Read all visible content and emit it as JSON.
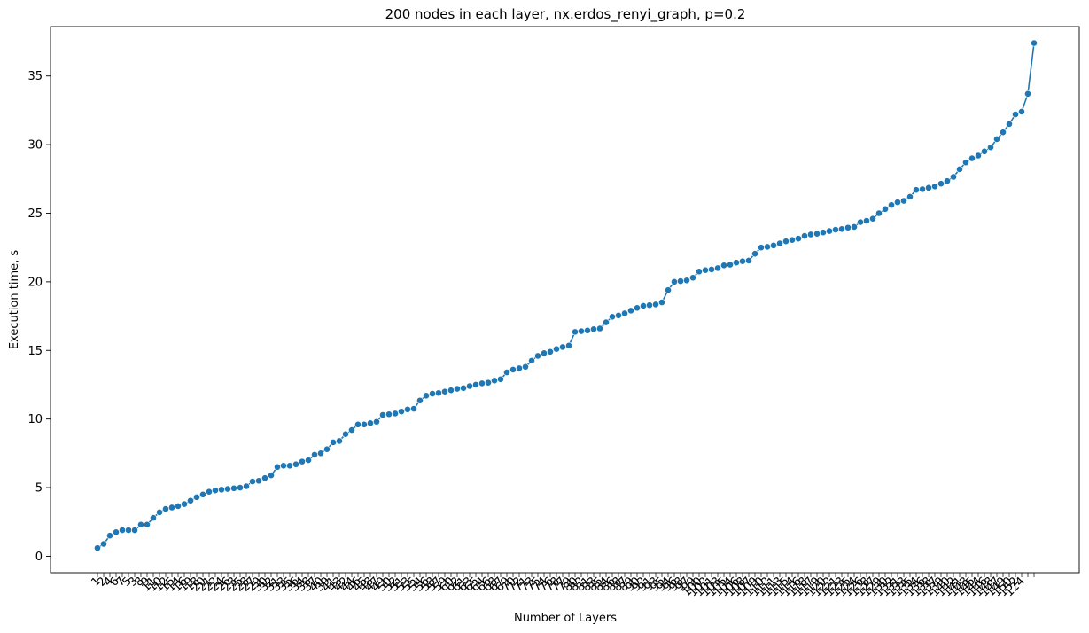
{
  "chart_data": {
    "type": "line",
    "title": "200 nodes in each layer, nx.erdos_renyi_graph, p=0.2",
    "xlabel": "Number of Layers",
    "ylabel": "Execution time, s",
    "ylim": [
      -1.2,
      38.6
    ],
    "yticks": [
      0,
      5,
      10,
      15,
      20,
      25,
      30,
      35
    ],
    "grid": false,
    "series_color": "#1f77b4",
    "x_tick_labels_note_text": "",
    "x_categories_count": 150,
    "x_tick_labels_visible": [
      "1",
      "2",
      "4",
      "6",
      "7",
      "5",
      "3",
      "8",
      "9",
      "11",
      "10",
      "12",
      "15",
      "14",
      "16",
      "19",
      "18",
      "20",
      "21",
      "22",
      "24",
      "26",
      "23",
      "25",
      "28",
      "27",
      "29",
      "30",
      "32",
      "31",
      "33",
      "35",
      "36",
      "34",
      "38",
      "37",
      "40",
      "39",
      "41",
      "43",
      "42",
      "44",
      "46",
      "45",
      "48",
      "47",
      "49",
      "50",
      "52",
      "51",
      "53",
      "55",
      "54",
      "56",
      "58",
      "57",
      "59",
      "60",
      "62",
      "61",
      "63",
      "65",
      "64",
      "66",
      "68",
      "67",
      "69",
      "70",
      "72",
      "71",
      "73",
      "75",
      "74",
      "76",
      "78",
      "77",
      "79",
      "80",
      "82",
      "81",
      "83",
      "85",
      "84",
      "86",
      "88",
      "87",
      "89",
      "90",
      "92",
      "91",
      "93",
      "95",
      "94",
      "96",
      "98",
      "97",
      "99",
      "100",
      "102",
      "101",
      "103",
      "105",
      "104",
      "106",
      "108",
      "107",
      "109",
      "110",
      "112",
      "111",
      "113",
      "115",
      "114",
      "116",
      "118",
      "117",
      "119",
      "120",
      "122",
      "121",
      "123",
      "125",
      "124",
      "126",
      "128",
      "127",
      "129",
      "130",
      "132",
      "131",
      "133",
      "135",
      "134",
      "136",
      "138",
      "137",
      "139",
      "140",
      "142",
      "141",
      "143",
      "145",
      "144",
      "146",
      "148",
      "147",
      "149",
      "150",
      "152",
      "124"
    ],
    "values": [
      0.6,
      0.9,
      1.5,
      1.75,
      1.9,
      1.9,
      1.9,
      2.3,
      2.3,
      2.8,
      3.2,
      3.45,
      3.55,
      3.65,
      3.8,
      4.05,
      4.3,
      4.5,
      4.7,
      4.8,
      4.85,
      4.9,
      4.95,
      5.0,
      5.1,
      5.45,
      5.5,
      5.7,
      5.9,
      6.5,
      6.6,
      6.6,
      6.7,
      6.9,
      7.0,
      7.4,
      7.5,
      7.8,
      8.3,
      8.4,
      8.9,
      9.2,
      9.6,
      9.6,
      9.7,
      9.8,
      10.3,
      10.35,
      10.4,
      10.55,
      10.7,
      10.75,
      11.35,
      11.7,
      11.85,
      11.9,
      12.0,
      12.1,
      12.2,
      12.25,
      12.4,
      12.5,
      12.6,
      12.65,
      12.8,
      12.9,
      13.4,
      13.6,
      13.7,
      13.8,
      14.25,
      14.6,
      14.8,
      14.9,
      15.1,
      15.25,
      15.35,
      16.35,
      16.4,
      16.45,
      16.55,
      16.6,
      17.05,
      17.45,
      17.55,
      17.7,
      17.9,
      18.1,
      18.25,
      18.3,
      18.35,
      18.5,
      19.4,
      20.0,
      20.05,
      20.1,
      20.3,
      20.75,
      20.85,
      20.9,
      21.0,
      21.2,
      21.25,
      21.4,
      21.5,
      21.55,
      22.05,
      22.5,
      22.55,
      22.65,
      22.8,
      22.95,
      23.05,
      23.15,
      23.35,
      23.45,
      23.5,
      23.6,
      23.7,
      23.8,
      23.85,
      23.95,
      24.0,
      24.35,
      24.45,
      24.6,
      25.0,
      25.3,
      25.6,
      25.8,
      25.9,
      26.2,
      26.7,
      26.75,
      26.85,
      26.95,
      27.15,
      27.35,
      27.65,
      28.2,
      28.7,
      29.0,
      29.2,
      29.5,
      29.8,
      30.4,
      30.9,
      31.5,
      32.2,
      32.4,
      33.7,
      37.4
    ]
  }
}
